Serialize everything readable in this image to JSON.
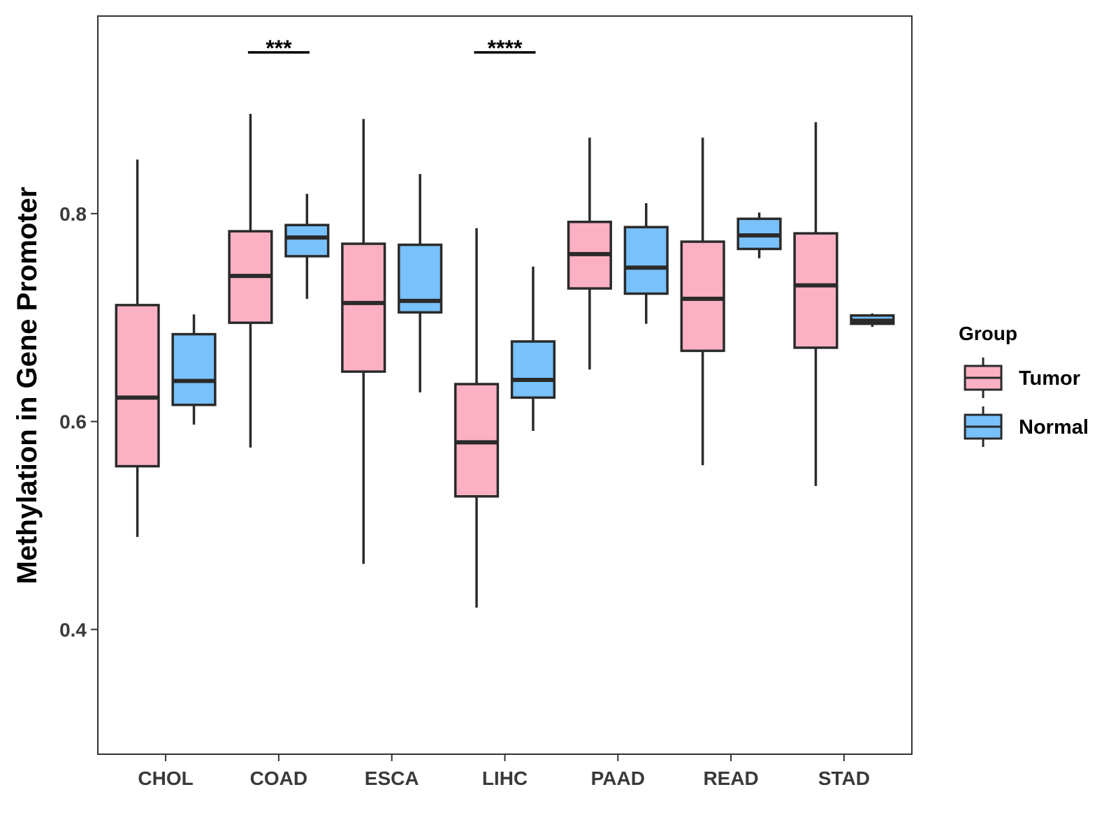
{
  "chart_data": {
    "type": "boxplot",
    "title": "",
    "xlabel": "",
    "ylabel": "Methylation in Gene Promoter",
    "ylim": [
      0.28,
      0.99
    ],
    "yticks": [
      {
        "value": 0.4,
        "label": "0.4"
      },
      {
        "value": 0.6,
        "label": "0.6"
      },
      {
        "value": 0.8,
        "label": "0.8"
      }
    ],
    "categories": [
      "CHOL",
      "COAD",
      "ESCA",
      "LIHC",
      "PAAD",
      "READ",
      "STAD"
    ],
    "legend": {
      "title": "Group",
      "position": "right",
      "entries": [
        {
          "name": "Tumor",
          "color": "#fbb1c3"
        },
        {
          "name": "Normal",
          "color": "#78c1fa"
        }
      ]
    },
    "series": [
      {
        "name": "Tumor",
        "color": "#fbb1c3",
        "boxes": [
          {
            "min": 0.489,
            "q1": 0.557,
            "median": 0.623,
            "q3": 0.712,
            "max": 0.852
          },
          {
            "min": 0.575,
            "q1": 0.695,
            "median": 0.74,
            "q3": 0.783,
            "max": 0.896
          },
          {
            "min": 0.463,
            "q1": 0.648,
            "median": 0.714,
            "q3": 0.771,
            "max": 0.891
          },
          {
            "min": 0.421,
            "q1": 0.528,
            "median": 0.58,
            "q3": 0.636,
            "max": 0.786
          },
          {
            "min": 0.65,
            "q1": 0.728,
            "median": 0.761,
            "q3": 0.792,
            "max": 0.873
          },
          {
            "min": 0.558,
            "q1": 0.668,
            "median": 0.718,
            "q3": 0.773,
            "max": 0.873
          },
          {
            "min": 0.538,
            "q1": 0.671,
            "median": 0.731,
            "q3": 0.781,
            "max": 0.888
          }
        ]
      },
      {
        "name": "Normal",
        "color": "#78c1fa",
        "boxes": [
          {
            "min": 0.597,
            "q1": 0.616,
            "median": 0.639,
            "q3": 0.684,
            "max": 0.703
          },
          {
            "min": 0.718,
            "q1": 0.759,
            "median": 0.777,
            "q3": 0.789,
            "max": 0.819
          },
          {
            "min": 0.628,
            "q1": 0.705,
            "median": 0.716,
            "q3": 0.77,
            "max": 0.838
          },
          {
            "min": 0.591,
            "q1": 0.623,
            "median": 0.64,
            "q3": 0.677,
            "max": 0.749
          },
          {
            "min": 0.694,
            "q1": 0.723,
            "median": 0.748,
            "q3": 0.787,
            "max": 0.81
          },
          {
            "min": 0.757,
            "q1": 0.766,
            "median": 0.779,
            "q3": 0.795,
            "max": 0.801
          },
          {
            "min": 0.691,
            "q1": 0.694,
            "median": 0.697,
            "q3": 0.702,
            "max": 0.704
          }
        ]
      }
    ],
    "annotations": [
      {
        "category": "COAD",
        "label": "***"
      },
      {
        "category": "LIHC",
        "label": "****"
      }
    ]
  }
}
